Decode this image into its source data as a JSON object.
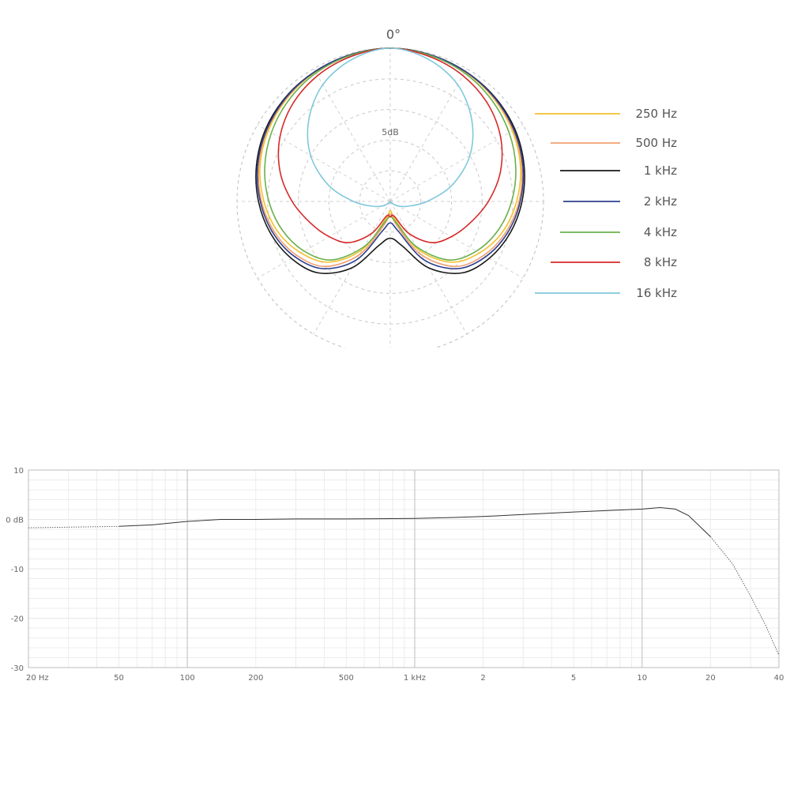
{
  "polar": {
    "angle_label": "0°",
    "ring_label": "5dB",
    "ring_levels_db": [
      0,
      -5,
      -10,
      -15,
      -20,
      -25
    ],
    "spoke_angles_deg": [
      0,
      30,
      60,
      90,
      120,
      150,
      180,
      210,
      240,
      270,
      300,
      330
    ]
  },
  "frequency_response": {
    "y_ticks": [
      "10",
      "0 dB",
      "-10",
      "-20",
      "-30"
    ],
    "x_ticks": [
      "20 Hz",
      "50",
      "100",
      "200",
      "500",
      "1 kHz",
      "2",
      "5",
      "10",
      "20",
      "40"
    ]
  },
  "chart_data": [
    {
      "type": "line",
      "subtype": "polar",
      "angle_units": "degrees",
      "r_units": "dB",
      "rlim": [
        -25,
        0
      ],
      "angles": [
        0,
        15,
        30,
        45,
        60,
        75,
        90,
        105,
        120,
        135,
        150,
        165,
        180
      ],
      "symmetric": true,
      "legend_position": "right",
      "series": [
        {
          "name": "250 Hz",
          "color": "#f2c12e",
          "values": [
            0,
            -0.2,
            -0.6,
            -1.2,
            -2.0,
            -3.0,
            -4.4,
            -6.0,
            -8.2,
            -11.0,
            -16.0,
            -22.0,
            -23.5
          ]
        },
        {
          "name": "500 Hz",
          "color": "#f0a070",
          "values": [
            0,
            -0.2,
            -0.5,
            -1.1,
            -1.8,
            -2.8,
            -4.0,
            -5.5,
            -7.4,
            -10.0,
            -15.0,
            -21.0,
            -23.0
          ]
        },
        {
          "name": "1 kHz",
          "color": "#1a1a1a",
          "values": [
            0,
            -0.2,
            -0.5,
            -0.9,
            -1.5,
            -2.4,
            -3.5,
            -4.8,
            -6.4,
            -8.5,
            -12.5,
            -17.5,
            -19.0
          ]
        },
        {
          "name": "2 kHz",
          "color": "#2e3f8f",
          "values": [
            0,
            -0.2,
            -0.5,
            -1.0,
            -1.7,
            -2.6,
            -3.8,
            -5.2,
            -7.0,
            -9.5,
            -14.0,
            -20.0,
            -21.5
          ]
        },
        {
          "name": "4 kHz",
          "color": "#6ab04c",
          "values": [
            0,
            -0.3,
            -0.8,
            -1.6,
            -2.6,
            -3.8,
            -5.2,
            -6.8,
            -8.8,
            -11.5,
            -16.5,
            -21.5,
            -22.5
          ]
        },
        {
          "name": "8 kHz",
          "color": "#d62828",
          "values": [
            0,
            -0.5,
            -1.3,
            -2.5,
            -4.2,
            -6.4,
            -9.0,
            -11.5,
            -13.5,
            -15.5,
            -19.0,
            -22.5,
            -22.5
          ]
        },
        {
          "name": "16 kHz",
          "color": "#7fc8dc",
          "values": [
            0,
            -1.0,
            -3.0,
            -6.2,
            -10.0,
            -14.5,
            -19.0,
            -22.0,
            -23.5,
            -24.5,
            -24.8,
            -24.9,
            -25.0
          ]
        }
      ]
    },
    {
      "type": "line",
      "x_scale": "log",
      "x_units": "Hz",
      "y_units": "dB",
      "xlim": [
        20,
        40000
      ],
      "ylim": [
        -30,
        10
      ],
      "grid": true,
      "series": [
        {
          "x": [
            20,
            50,
            70,
            100,
            140,
            200,
            300,
            500,
            700,
            1000,
            1500,
            2000,
            3000,
            5000,
            7000,
            10000,
            12000,
            14000,
            16000,
            20000,
            25000,
            30000,
            35000,
            40000
          ],
          "y": [
            -1.7,
            -1.4,
            -1.1,
            -0.4,
            0.0,
            0.0,
            0.1,
            0.1,
            0.15,
            0.2,
            0.4,
            0.6,
            1.0,
            1.5,
            1.8,
            2.1,
            2.4,
            2.1,
            0.8,
            -3.5,
            -9.0,
            -15.5,
            -21.5,
            -27.5
          ]
        }
      ]
    }
  ]
}
